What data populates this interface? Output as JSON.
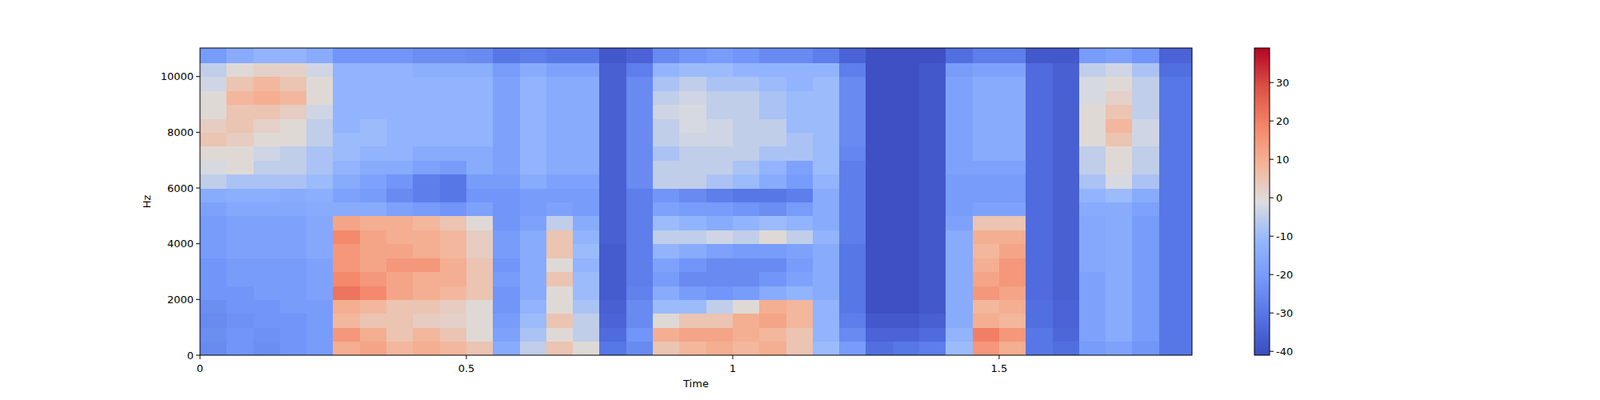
{
  "chart_data": {
    "type": "heatmap",
    "x_label": "Time",
    "y_label": "Hz",
    "xlim": [
      0,
      1.862
    ],
    "xticks": [
      0,
      0.5,
      1,
      1.5
    ],
    "ylim": [
      0,
      11025
    ],
    "yticks": [
      0,
      2000,
      4000,
      6000,
      8000,
      10000
    ],
    "x_bins": [
      0,
      0.05,
      0.1,
      0.15,
      0.2,
      0.25,
      0.3,
      0.35,
      0.4,
      0.45,
      0.5,
      0.55,
      0.6,
      0.65,
      0.7,
      0.75,
      0.8,
      0.85,
      0.9,
      0.95,
      1.0,
      1.05,
      1.1,
      1.15,
      1.2,
      1.25,
      1.3,
      1.35,
      1.4,
      1.45,
      1.5,
      1.55,
      1.6,
      1.65,
      1.7,
      1.75,
      1.8,
      1.862
    ],
    "y_bins": [
      0,
      500,
      1000,
      1500,
      2000,
      2500,
      3000,
      3500,
      4000,
      4500,
      5000,
      5500,
      6000,
      6500,
      7000,
      7500,
      8000,
      8500,
      9000,
      9500,
      10000,
      10500,
      11025
    ],
    "colorbar_lim": [
      -41,
      39
    ],
    "colorbar_ticks": [
      -40,
      -30,
      -20,
      -10,
      0,
      10,
      20,
      30
    ],
    "cells": [
      [
        -25,
        -22,
        -24,
        -22,
        -20,
        10,
        12,
        8,
        10,
        8,
        5,
        -15,
        -5,
        5,
        0,
        -30,
        -25,
        5,
        8,
        10,
        8,
        10,
        5,
        -10,
        -20,
        -32,
        -30,
        -28,
        -10,
        15,
        10,
        -30,
        -32,
        -20,
        -18,
        -22,
        -30
      ],
      [
        -24,
        -22,
        -23,
        -22,
        -20,
        15,
        10,
        5,
        8,
        5,
        0,
        -18,
        -8,
        0,
        -5,
        -33,
        -22,
        10,
        12,
        12,
        10,
        8,
        5,
        -12,
        -25,
        -35,
        -35,
        -33,
        -12,
        20,
        15,
        -30,
        -34,
        -18,
        -15,
        -20,
        -30
      ],
      [
        -25,
        -23,
        -22,
        -22,
        -20,
        8,
        5,
        5,
        3,
        2,
        0,
        -20,
        -10,
        5,
        -5,
        -35,
        -25,
        0,
        5,
        5,
        10,
        12,
        8,
        -12,
        -28,
        -38,
        -38,
        -36,
        -15,
        10,
        8,
        -32,
        -35,
        -18,
        -15,
        -20,
        -30
      ],
      [
        -24,
        -22,
        -22,
        -20,
        -20,
        10,
        8,
        5,
        5,
        3,
        0,
        -22,
        -12,
        0,
        -8,
        -36,
        -25,
        -10,
        -10,
        -5,
        0,
        10,
        8,
        -12,
        -30,
        -40,
        -40,
        -38,
        -15,
        8,
        10,
        -32,
        -35,
        -18,
        -15,
        -20,
        -30
      ],
      [
        -22,
        -22,
        -20,
        -20,
        -18,
        22,
        18,
        12,
        10,
        8,
        5,
        -22,
        -15,
        0,
        -10,
        -37,
        -27,
        -15,
        -20,
        -22,
        -20,
        -15,
        -12,
        -15,
        -30,
        -40,
        -40,
        -38,
        -15,
        15,
        12,
        -33,
        -36,
        -18,
        -15,
        -20,
        -30
      ],
      [
        -22,
        -20,
        -20,
        -20,
        -18,
        18,
        15,
        12,
        10,
        10,
        5,
        -20,
        -15,
        5,
        -10,
        -37,
        -28,
        -20,
        -25,
        -25,
        -25,
        -22,
        -18,
        -15,
        -30,
        -40,
        -40,
        -38,
        -15,
        12,
        15,
        -33,
        -36,
        -18,
        -15,
        -20,
        -30
      ],
      [
        -22,
        -20,
        -20,
        -20,
        -18,
        15,
        12,
        15,
        15,
        10,
        5,
        -22,
        -15,
        0,
        -12,
        -37,
        -28,
        -18,
        -22,
        -25,
        -25,
        -25,
        -20,
        -15,
        -30,
        -40,
        -40,
        -38,
        -15,
        10,
        15,
        -33,
        -36,
        -16,
        -15,
        -20,
        -30
      ],
      [
        -20,
        -18,
        -18,
        -18,
        -16,
        15,
        12,
        12,
        10,
        8,
        3,
        -20,
        -15,
        5,
        -10,
        -37,
        -28,
        -12,
        -15,
        -18,
        -20,
        -20,
        -18,
        -15,
        -30,
        -40,
        -40,
        -38,
        -15,
        8,
        12,
        -33,
        -36,
        -16,
        -15,
        -20,
        -30
      ],
      [
        -20,
        -18,
        -18,
        -18,
        -16,
        18,
        12,
        10,
        10,
        8,
        3,
        -20,
        -15,
        5,
        -12,
        -36,
        -28,
        -5,
        -5,
        -3,
        -5,
        0,
        -5,
        -12,
        -28,
        -40,
        -40,
        -38,
        -15,
        10,
        10,
        -33,
        -36,
        -16,
        -15,
        -20,
        -30
      ],
      [
        -20,
        -18,
        -18,
        -18,
        -16,
        12,
        10,
        10,
        8,
        5,
        0,
        -22,
        -18,
        -5,
        -15,
        -36,
        -28,
        -10,
        -12,
        -15,
        -12,
        -10,
        -12,
        -15,
        -28,
        -40,
        -40,
        -38,
        -18,
        5,
        5,
        -33,
        -36,
        -16,
        -15,
        -20,
        -30
      ],
      [
        -18,
        -16,
        -16,
        -16,
        -15,
        -15,
        -15,
        -18,
        -20,
        -22,
        -18,
        -22,
        -20,
        -18,
        -20,
        -36,
        -28,
        -18,
        -20,
        -20,
        -22,
        -24,
        -20,
        -15,
        -28,
        -40,
        -40,
        -38,
        -20,
        -18,
        -18,
        -33,
        -36,
        -15,
        -15,
        -18,
        -30
      ],
      [
        -15,
        -14,
        -14,
        -15,
        -14,
        -18,
        -20,
        -25,
        -28,
        -30,
        -22,
        -22,
        -20,
        -20,
        -20,
        -36,
        -28,
        -22,
        -25,
        -28,
        -30,
        -30,
        -28,
        -15,
        -28,
        -40,
        -40,
        -38,
        -20,
        -20,
        -20,
        -33,
        -36,
        -12,
        -10,
        -15,
        -30
      ],
      [
        -5,
        -8,
        -8,
        -8,
        -10,
        -15,
        -18,
        -22,
        -28,
        -30,
        -20,
        -20,
        -15,
        -18,
        -18,
        -36,
        -25,
        -5,
        -5,
        -8,
        -10,
        -15,
        -20,
        -12,
        -28,
        -40,
        -40,
        -38,
        -20,
        -20,
        -20,
        -33,
        -36,
        -8,
        -2,
        -8,
        -30
      ],
      [
        -2,
        0,
        -5,
        -5,
        -8,
        -12,
        -15,
        -15,
        -18,
        -20,
        -15,
        -18,
        -12,
        -15,
        -15,
        -36,
        -25,
        -5,
        -5,
        -5,
        -8,
        -12,
        -18,
        -10,
        -28,
        -40,
        -40,
        -38,
        -18,
        -18,
        -18,
        -33,
        -36,
        -5,
        0,
        -5,
        -30
      ],
      [
        0,
        0,
        -3,
        -5,
        -8,
        -10,
        -12,
        -12,
        -15,
        -15,
        -15,
        -18,
        -12,
        -15,
        -15,
        -36,
        -25,
        -8,
        -5,
        -5,
        -5,
        -8,
        -8,
        -10,
        -26,
        -40,
        -40,
        -38,
        -18,
        -15,
        -15,
        -33,
        -36,
        -5,
        0,
        -5,
        -30
      ],
      [
        5,
        3,
        0,
        0,
        -5,
        -10,
        -10,
        -12,
        -12,
        -12,
        -12,
        -18,
        -12,
        -15,
        -15,
        -36,
        -25,
        -5,
        -3,
        -3,
        -5,
        -5,
        -8,
        -10,
        -25,
        -40,
        -40,
        -38,
        -18,
        -15,
        -15,
        -33,
        -36,
        0,
        5,
        -3,
        -30
      ],
      [
        3,
        5,
        2,
        0,
        -5,
        -12,
        -10,
        -12,
        -12,
        -12,
        -12,
        -18,
        -12,
        -15,
        -15,
        -36,
        -25,
        -5,
        -2,
        -3,
        -5,
        -5,
        -10,
        -10,
        -25,
        -40,
        -40,
        -38,
        -18,
        -15,
        -15,
        -33,
        -36,
        0,
        8,
        -3,
        -30
      ],
      [
        0,
        5,
        5,
        3,
        -3,
        -12,
        -12,
        -12,
        -12,
        -12,
        -12,
        -18,
        -12,
        -15,
        -15,
        -36,
        -25,
        -3,
        -2,
        -5,
        -5,
        -8,
        -10,
        -10,
        -25,
        -40,
        -40,
        -38,
        -18,
        -15,
        -15,
        -33,
        -36,
        0,
        5,
        -5,
        -30
      ],
      [
        0,
        8,
        10,
        8,
        0,
        -12,
        -12,
        -12,
        -12,
        -12,
        -12,
        -18,
        -12,
        -15,
        -15,
        -36,
        -25,
        -5,
        -3,
        -5,
        -5,
        -8,
        -10,
        -10,
        -25,
        -40,
        -40,
        -38,
        -18,
        -15,
        -15,
        -33,
        -36,
        -2,
        2,
        -5,
        -30
      ],
      [
        -3,
        5,
        8,
        5,
        0,
        -12,
        -12,
        -12,
        -12,
        -12,
        -12,
        -18,
        -12,
        -15,
        -15,
        -36,
        -25,
        -8,
        -5,
        -8,
        -8,
        -10,
        -12,
        -10,
        -25,
        -40,
        -40,
        -38,
        -18,
        -15,
        -15,
        -33,
        -36,
        -2,
        0,
        -5,
        -30
      ],
      [
        -5,
        0,
        2,
        2,
        -3,
        -12,
        -12,
        -12,
        -14,
        -14,
        -14,
        -20,
        -15,
        -18,
        -18,
        -36,
        -28,
        -12,
        -10,
        -10,
        -12,
        -12,
        -12,
        -12,
        -28,
        -40,
        -40,
        -38,
        -20,
        -18,
        -18,
        -33,
        -36,
        -5,
        -3,
        -8,
        -32
      ],
      [
        -20,
        -15,
        -12,
        -12,
        -15,
        -22,
        -22,
        -22,
        -24,
        -24,
        -25,
        -30,
        -28,
        -30,
        -30,
        -38,
        -35,
        -25,
        -22,
        -20,
        -22,
        -25,
        -25,
        -28,
        -35,
        -40,
        -40,
        -40,
        -32,
        -28,
        -28,
        -38,
        -38,
        -20,
        -18,
        -22,
        -35
      ]
    ]
  }
}
